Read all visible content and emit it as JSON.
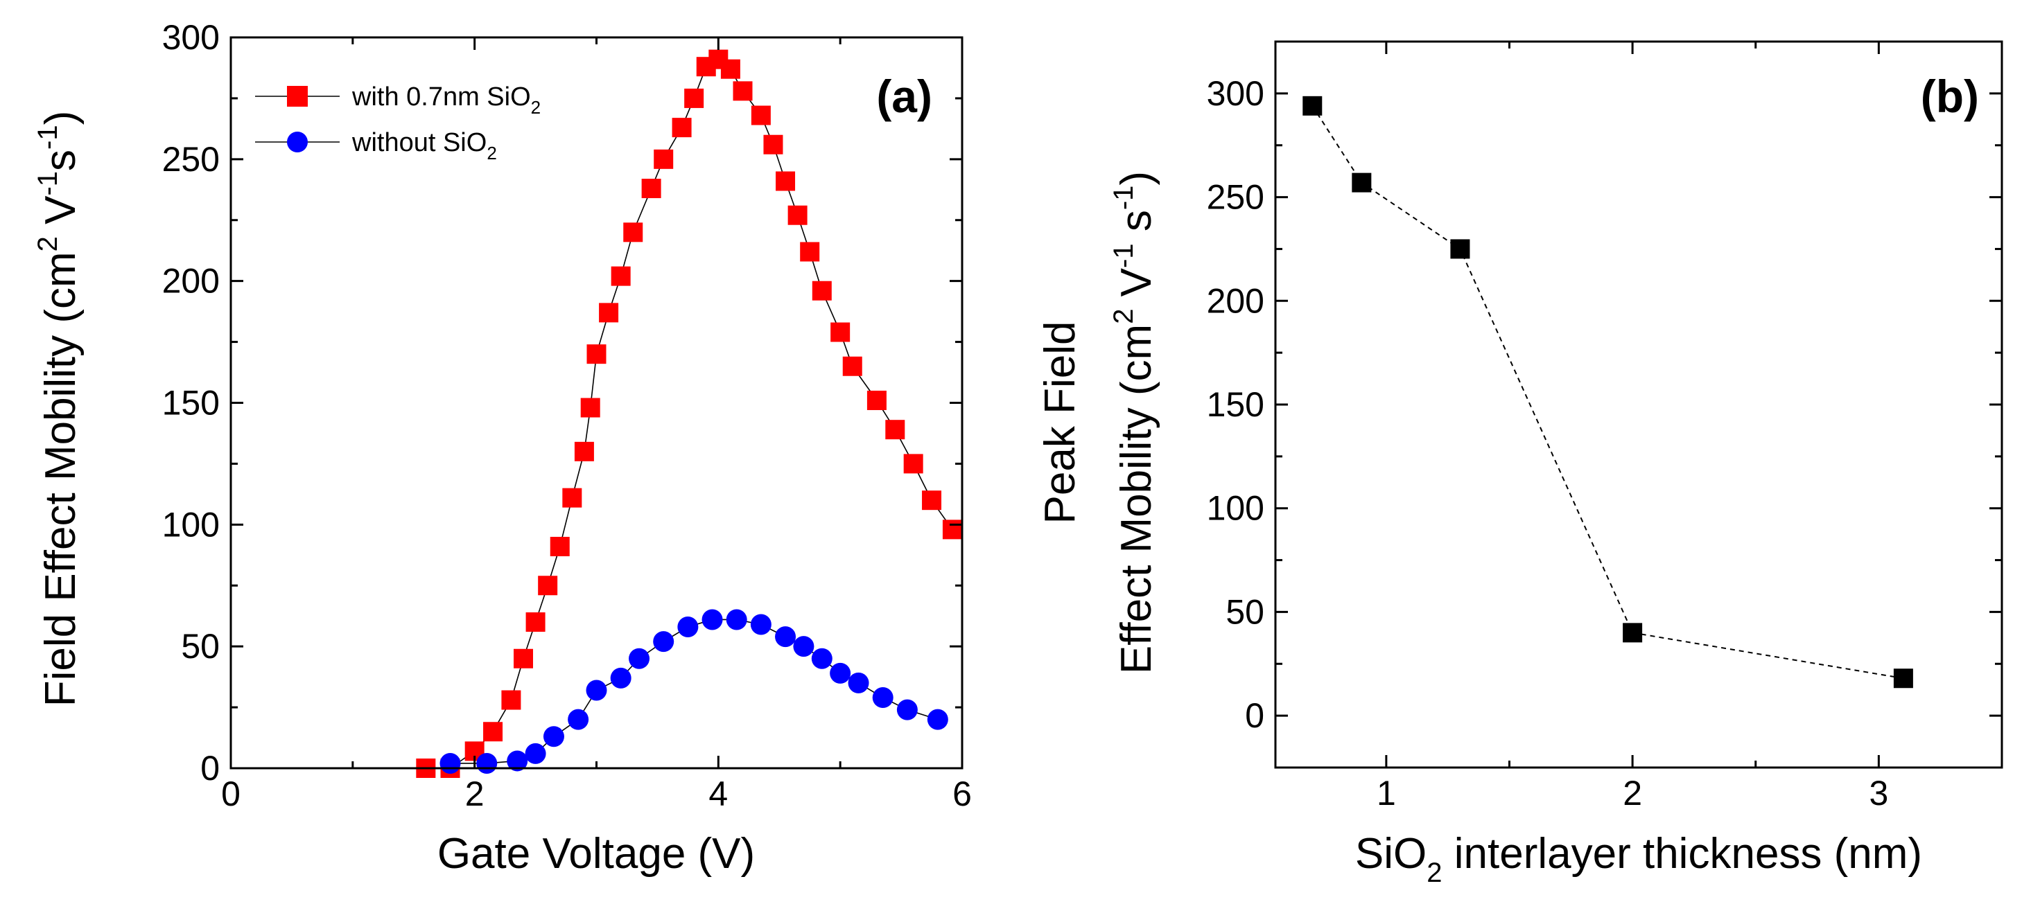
{
  "chart_data": [
    {
      "type": "scatter",
      "panel_label": "(a)",
      "xlabel": "Gate Voltage (V)",
      "ylabel": {
        "base": "Field Effect Mobility (cm",
        "sup1": "2",
        "mid1": " V",
        "sup2": "-1",
        "mid2": "s",
        "sup3": "-1",
        "end": ")"
      },
      "xlim": [
        0,
        6
      ],
      "ylim": [
        0,
        300
      ],
      "xticks": [
        0,
        2,
        4,
        6
      ],
      "yticks": [
        0,
        50,
        100,
        150,
        200,
        250,
        300
      ],
      "grid": false,
      "legend_position": "top-left",
      "series": [
        {
          "name": "with 0.7nm SiO2",
          "legend": {
            "text": "with 0.7nm SiO",
            "sub": "2"
          },
          "color": "#ff0000",
          "marker": "square",
          "line": "solid",
          "x": [
            1.6,
            1.8,
            2.0,
            2.15,
            2.3,
            2.4,
            2.5,
            2.6,
            2.7,
            2.8,
            2.9,
            2.95,
            3.0,
            3.1,
            3.2,
            3.3,
            3.45,
            3.55,
            3.7,
            3.8,
            3.9,
            4.0,
            4.1,
            4.2,
            4.35,
            4.45,
            4.55,
            4.65,
            4.75,
            4.85,
            5.0,
            5.1,
            5.3,
            5.45,
            5.6,
            5.75,
            5.92
          ],
          "y": [
            0,
            0,
            7,
            15,
            28,
            45,
            60,
            75,
            91,
            111,
            130,
            148,
            170,
            187,
            202,
            220,
            238,
            250,
            263,
            275,
            288,
            291,
            287,
            278,
            268,
            256,
            241,
            227,
            212,
            196,
            179,
            165,
            151,
            139,
            125,
            110,
            98
          ]
        },
        {
          "name": "without SiO2",
          "legend": {
            "text": "without SiO",
            "sub": "2"
          },
          "color": "#0000ff",
          "marker": "circle",
          "line": "solid",
          "x": [
            1.8,
            2.1,
            2.35,
            2.5,
            2.65,
            2.85,
            3.0,
            3.2,
            3.35,
            3.55,
            3.75,
            3.95,
            4.15,
            4.35,
            4.55,
            4.7,
            4.85,
            5.0,
            5.15,
            5.35,
            5.55,
            5.8
          ],
          "y": [
            2,
            2,
            3,
            6,
            13,
            20,
            32,
            37,
            45,
            52,
            58,
            61,
            61,
            59,
            54,
            50,
            45,
            39,
            35,
            29,
            24,
            20
          ]
        }
      ]
    },
    {
      "type": "scatter",
      "panel_label": "(b)",
      "xlabel": {
        "text1": "SiO",
        "sub": "2",
        "text2": " interlayer thickness (nm)"
      },
      "ylabel": {
        "line1": "Peak Field",
        "line2": {
          "base": "Effect Mobility (cm",
          "sup1": "2",
          "mid1": " V",
          "sup2": "-1",
          "mid2": " s",
          "sup3": "-1",
          "end": ")"
        }
      },
      "xlim": [
        0.55,
        3.5
      ],
      "ylim": [
        -25,
        325
      ],
      "xticks": [
        1,
        2,
        3
      ],
      "yticks": [
        0,
        50,
        100,
        150,
        200,
        250,
        300
      ],
      "grid": false,
      "series": [
        {
          "name": "Peak Field Effect Mobility",
          "color": "#000000",
          "marker": "square",
          "line": "dashed",
          "x": [
            0.7,
            0.9,
            1.3,
            2.0,
            3.1
          ],
          "y": [
            294,
            257,
            225,
            40,
            18
          ]
        }
      ]
    }
  ]
}
